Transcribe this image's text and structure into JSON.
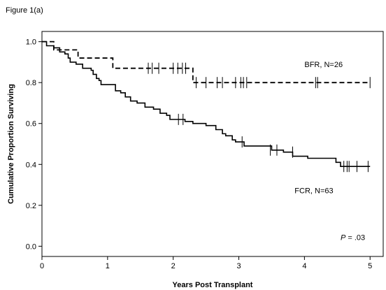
{
  "figure_label": "Figure 1(a)",
  "chart_data": {
    "type": "line",
    "title": "",
    "xlabel": "Years Post Transplant",
    "ylabel": "Cumulative Proportion Surviving",
    "xlim": [
      0,
      5.2
    ],
    "ylim": [
      -0.05,
      1.05
    ],
    "xticks": [
      0,
      1,
      2,
      3,
      4,
      5
    ],
    "yticks": [
      0.0,
      0.2,
      0.4,
      0.6,
      0.8,
      1.0
    ],
    "xtick_labels": [
      "0",
      "1",
      "2",
      "3",
      "4",
      "5"
    ],
    "ytick_labels": [
      "0.0",
      "0.2",
      "0.4",
      "0.6",
      "0.8",
      "1.0"
    ],
    "grid": false,
    "series": [
      {
        "name": "BFR, N=26",
        "style": "dashed",
        "steps": [
          [
            0,
            1.0
          ],
          [
            0.18,
            0.96
          ],
          [
            0.55,
            0.92
          ],
          [
            1.08,
            0.87
          ],
          [
            2.3,
            0.8
          ],
          [
            5.0,
            0.8
          ]
        ],
        "censor": [
          [
            1.62,
            0.87
          ],
          [
            1.68,
            0.87
          ],
          [
            1.78,
            0.87
          ],
          [
            2.0,
            0.87
          ],
          [
            2.07,
            0.87
          ],
          [
            2.14,
            0.87
          ],
          [
            2.19,
            0.87
          ],
          [
            2.35,
            0.8
          ],
          [
            2.5,
            0.8
          ],
          [
            2.67,
            0.8
          ],
          [
            2.75,
            0.8
          ],
          [
            2.95,
            0.8
          ],
          [
            3.03,
            0.8
          ],
          [
            3.07,
            0.8
          ],
          [
            3.12,
            0.8
          ],
          [
            4.17,
            0.8
          ],
          [
            4.2,
            0.8
          ],
          [
            5.0,
            0.8
          ]
        ]
      },
      {
        "name": "FCR, N=63",
        "style": "solid",
        "steps": [
          [
            0,
            1.0
          ],
          [
            0.07,
            0.98
          ],
          [
            0.18,
            0.97
          ],
          [
            0.27,
            0.95
          ],
          [
            0.35,
            0.94
          ],
          [
            0.4,
            0.92
          ],
          [
            0.43,
            0.9
          ],
          [
            0.52,
            0.89
          ],
          [
            0.62,
            0.87
          ],
          [
            0.75,
            0.86
          ],
          [
            0.78,
            0.84
          ],
          [
            0.83,
            0.82
          ],
          [
            0.87,
            0.81
          ],
          [
            0.9,
            0.79
          ],
          [
            1.12,
            0.76
          ],
          [
            1.2,
            0.75
          ],
          [
            1.27,
            0.73
          ],
          [
            1.35,
            0.71
          ],
          [
            1.45,
            0.7
          ],
          [
            1.57,
            0.68
          ],
          [
            1.7,
            0.67
          ],
          [
            1.8,
            0.65
          ],
          [
            1.9,
            0.64
          ],
          [
            1.95,
            0.62
          ],
          [
            2.18,
            0.61
          ],
          [
            2.3,
            0.6
          ],
          [
            2.5,
            0.59
          ],
          [
            2.65,
            0.57
          ],
          [
            2.75,
            0.55
          ],
          [
            2.8,
            0.54
          ],
          [
            2.9,
            0.52
          ],
          [
            2.95,
            0.51
          ],
          [
            3.08,
            0.49
          ],
          [
            3.5,
            0.47
          ],
          [
            3.68,
            0.46
          ],
          [
            3.82,
            0.44
          ],
          [
            4.05,
            0.43
          ],
          [
            4.48,
            0.41
          ],
          [
            4.55,
            0.39
          ],
          [
            5.0,
            0.39
          ]
        ],
        "censor": [
          [
            2.08,
            0.62
          ],
          [
            2.15,
            0.62
          ],
          [
            3.05,
            0.51
          ],
          [
            3.48,
            0.47
          ],
          [
            3.58,
            0.47
          ],
          [
            3.82,
            0.46
          ],
          [
            4.6,
            0.39
          ],
          [
            4.65,
            0.39
          ],
          [
            4.68,
            0.39
          ],
          [
            4.8,
            0.39
          ],
          [
            4.97,
            0.39
          ]
        ]
      }
    ],
    "annotations": [
      {
        "text": "BFR, N=26",
        "x": 4.0,
        "y": 0.875
      },
      {
        "text": "FCR, N=63",
        "x": 3.85,
        "y": 0.26
      },
      {
        "text_italic": "P",
        "text": " = .03",
        "x": 4.55,
        "y": 0.03
      }
    ]
  }
}
